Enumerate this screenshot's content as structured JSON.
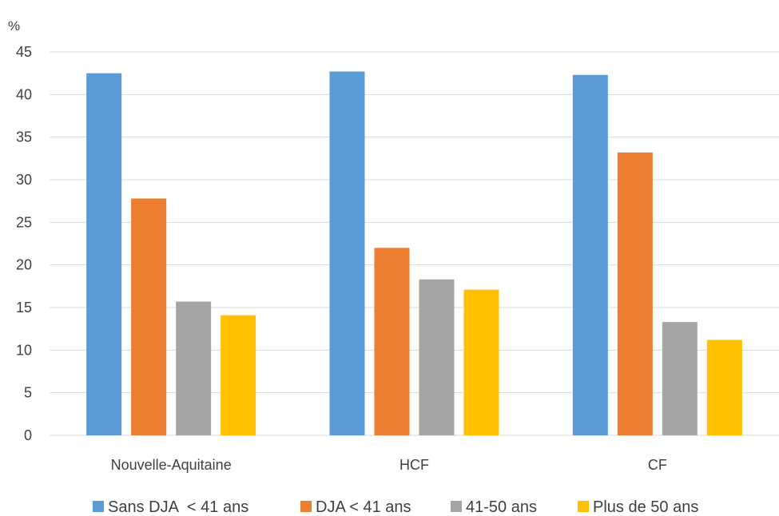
{
  "chart_data": {
    "type": "bar",
    "ylabel": "%",
    "ylim": [
      0,
      45
    ],
    "yticks": [
      0,
      5,
      10,
      15,
      20,
      25,
      30,
      35,
      40,
      45
    ],
    "grid": true,
    "legend_position": "bottom",
    "categories": [
      "Nouvelle-Aquitaine",
      "HCF",
      "CF"
    ],
    "series": [
      {
        "name": "Sans DJA  < 41 ans",
        "color": "#5B9BD5",
        "values": [
          42.5,
          42.7,
          42.3
        ]
      },
      {
        "name": "DJA < 41 ans",
        "color": "#ED7D31",
        "values": [
          27.8,
          22.0,
          33.2
        ]
      },
      {
        "name": "41-50 ans",
        "color": "#A5A5A5",
        "values": [
          15.7,
          18.3,
          13.3
        ]
      },
      {
        "name": "Plus de 50 ans",
        "color": "#FFC000",
        "values": [
          14.1,
          17.1,
          11.2
        ]
      }
    ]
  }
}
